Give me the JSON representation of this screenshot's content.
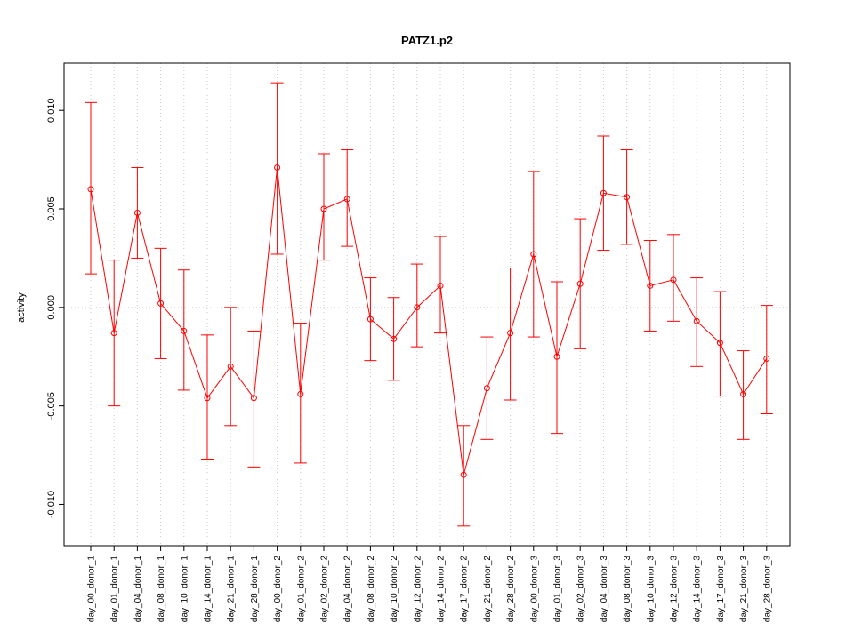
{
  "chart_data": {
    "type": "line",
    "title": "PATZ1.p2",
    "xlabel": "",
    "ylabel": "activity",
    "categories": [
      "day_00_donor_1",
      "day_01_donor_1",
      "day_04_donor_1",
      "day_08_donor_1",
      "day_10_donor_1",
      "day_14_donor_1",
      "day_21_donor_1",
      "day_28_donor_1",
      "day_00_donor_2",
      "day_01_donor_2",
      "day_02_donor_2",
      "day_04_donor_2",
      "day_08_donor_2",
      "day_10_donor_2",
      "day_12_donor_2",
      "day_14_donor_2",
      "day_17_donor_2",
      "day_21_donor_2",
      "day_28_donor_2",
      "day_00_donor_3",
      "day_01_donor_3",
      "day_02_donor_3",
      "day_04_donor_3",
      "day_08_donor_3",
      "day_10_donor_3",
      "day_12_donor_3",
      "day_14_donor_3",
      "day_17_donor_3",
      "day_21_donor_3",
      "day_28_donor_3"
    ],
    "values": [
      0.006,
      -0.0013,
      0.0048,
      0.0002,
      -0.0012,
      -0.0046,
      -0.003,
      -0.0046,
      0.0071,
      -0.0044,
      0.005,
      0.0055,
      -0.0006,
      -0.0016,
      0.0,
      0.0011,
      -0.0085,
      -0.0041,
      -0.0013,
      0.0027,
      -0.0025,
      0.0012,
      0.0058,
      0.0056,
      0.0011,
      0.0014,
      -0.0007,
      -0.0018,
      -0.0044,
      -0.0026
    ],
    "upper": [
      0.0104,
      0.0024,
      0.0071,
      0.003,
      0.0019,
      -0.0014,
      0.0,
      -0.0012,
      0.0114,
      -0.0008,
      0.0078,
      0.008,
      0.0015,
      0.0005,
      0.0022,
      0.0036,
      -0.006,
      -0.0015,
      0.002,
      0.0069,
      0.0013,
      0.0045,
      0.0087,
      0.008,
      0.0034,
      0.0037,
      0.0015,
      0.0008,
      -0.0022,
      0.0001
    ],
    "lower": [
      0.0017,
      -0.005,
      0.0025,
      -0.0026,
      -0.0042,
      -0.0077,
      -0.006,
      -0.0081,
      0.0027,
      -0.0079,
      0.0024,
      0.0031,
      -0.0027,
      -0.0037,
      -0.002,
      -0.0013,
      -0.0111,
      -0.0067,
      -0.0047,
      -0.0015,
      -0.0064,
      -0.0021,
      0.0029,
      0.0032,
      -0.0012,
      -0.0007,
      -0.003,
      -0.0045,
      -0.0067,
      -0.0054
    ],
    "ylim": [
      -0.0121,
      0.0124
    ],
    "yticks": [
      -0.01,
      -0.005,
      0.0,
      0.005,
      0.01
    ],
    "ytick_labels": [
      "-0.010",
      "-0.005",
      "0.000",
      "0.005",
      "0.010"
    ],
    "grid": true,
    "series_color": "#ff0000",
    "grid_color": "#c8c8c8"
  }
}
